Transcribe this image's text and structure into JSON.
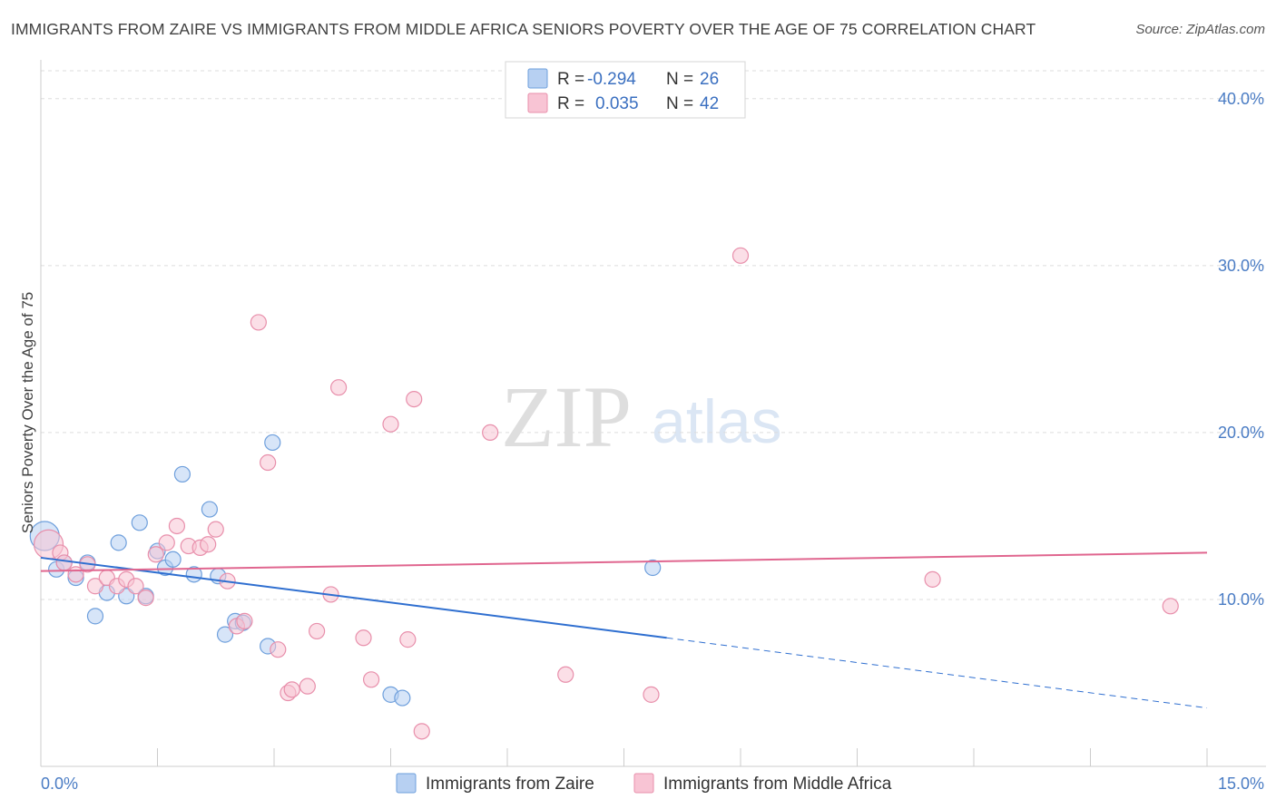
{
  "header": {
    "title": "IMMIGRANTS FROM ZAIRE VS IMMIGRANTS FROM MIDDLE AFRICA SENIORS POVERTY OVER THE AGE OF 75 CORRELATION CHART",
    "source": "Source: ZipAtlas.com"
  },
  "watermark": {
    "zip": "ZIP",
    "atlas": "atlas"
  },
  "colors": {
    "zaire_fill": "#b7d0f2",
    "zaire_stroke": "#6e9fdc",
    "zaire_line": "#2f6fd0",
    "africa_fill": "#f8c4d4",
    "africa_stroke": "#e88fab",
    "africa_line": "#e0668f",
    "axis_label": "#4a7cc4",
    "grid": "#dddddd"
  },
  "chart_data": {
    "type": "scatter",
    "title": "IMMIGRANTS FROM ZAIRE VS IMMIGRANTS FROM MIDDLE AFRICA SENIORS POVERTY OVER THE AGE OF 75 CORRELATION CHART",
    "xlabel": "",
    "ylabel": "Seniors Poverty Over the Age of 75",
    "xlim": [
      0,
      15
    ],
    "ylim": [
      0,
      42
    ],
    "x_tick_labels": [
      {
        "value": 0,
        "label": "0.0%"
      },
      {
        "value": 15,
        "label": "15.0%"
      }
    ],
    "x_minor_ticks": [
      1.5,
      3.0,
      4.5,
      6.0,
      7.5,
      9.0,
      10.5,
      12.0,
      13.5,
      15.0
    ],
    "y_tick_labels": [
      {
        "value": 10,
        "label": "10.0%"
      },
      {
        "value": 20,
        "label": "20.0%"
      },
      {
        "value": 30,
        "label": "30.0%"
      },
      {
        "value": 40,
        "label": "40.0%"
      }
    ],
    "grid": true,
    "legend": {
      "position": "top-center",
      "entries": [
        {
          "r_label": "R = ",
          "r_value": "-0.294",
          "n_label": "N = ",
          "n_value": "26"
        },
        {
          "r_label": "R = ",
          "r_value": "0.035",
          "n_label": "N = ",
          "n_value": "42"
        }
      ]
    },
    "bottom_legend": [
      "Immigrants from Zaire",
      "Immigrants from Middle Africa"
    ],
    "series": [
      {
        "name": "Immigrants from Zaire",
        "color": "#b7d0f2",
        "points": [
          {
            "x": 0.05,
            "y": 13.8,
            "big": true
          },
          {
            "x": 0.2,
            "y": 11.8
          },
          {
            "x": 0.3,
            "y": 12.2
          },
          {
            "x": 0.45,
            "y": 11.3
          },
          {
            "x": 0.6,
            "y": 12.2
          },
          {
            "x": 0.7,
            "y": 9.0
          },
          {
            "x": 0.85,
            "y": 10.4
          },
          {
            "x": 1.0,
            "y": 13.4
          },
          {
            "x": 1.1,
            "y": 10.2
          },
          {
            "x": 1.27,
            "y": 14.6
          },
          {
            "x": 1.35,
            "y": 10.2
          },
          {
            "x": 1.5,
            "y": 12.9
          },
          {
            "x": 1.6,
            "y": 11.9
          },
          {
            "x": 1.7,
            "y": 12.4
          },
          {
            "x": 1.82,
            "y": 17.5
          },
          {
            "x": 1.97,
            "y": 11.5
          },
          {
            "x": 2.17,
            "y": 15.4
          },
          {
            "x": 2.28,
            "y": 11.4
          },
          {
            "x": 2.37,
            "y": 7.9
          },
          {
            "x": 2.5,
            "y": 8.7
          },
          {
            "x": 2.6,
            "y": 8.6
          },
          {
            "x": 2.92,
            "y": 7.2
          },
          {
            "x": 2.98,
            "y": 19.4
          },
          {
            "x": 4.5,
            "y": 4.3
          },
          {
            "x": 4.65,
            "y": 4.1
          },
          {
            "x": 7.87,
            "y": 11.9
          }
        ],
        "trend": {
          "x0": 0,
          "y0": 12.5,
          "x1": 8.05,
          "y1": 7.7,
          "dash_x1": 15,
          "dash_y1": 3.5
        }
      },
      {
        "name": "Immigrants from Middle Africa",
        "color": "#f8c4d4",
        "points": [
          {
            "x": 0.1,
            "y": 13.3,
            "big": true
          },
          {
            "x": 0.25,
            "y": 12.8
          },
          {
            "x": 0.3,
            "y": 12.2
          },
          {
            "x": 0.45,
            "y": 11.5
          },
          {
            "x": 0.6,
            "y": 12.1
          },
          {
            "x": 0.7,
            "y": 10.8
          },
          {
            "x": 0.85,
            "y": 11.3
          },
          {
            "x": 0.98,
            "y": 10.8
          },
          {
            "x": 1.1,
            "y": 11.2
          },
          {
            "x": 1.22,
            "y": 10.8
          },
          {
            "x": 1.35,
            "y": 10.1
          },
          {
            "x": 1.48,
            "y": 12.7
          },
          {
            "x": 1.62,
            "y": 13.4
          },
          {
            "x": 1.75,
            "y": 14.4
          },
          {
            "x": 1.9,
            "y": 13.2
          },
          {
            "x": 2.05,
            "y": 13.1
          },
          {
            "x": 2.15,
            "y": 13.3
          },
          {
            "x": 2.25,
            "y": 14.2
          },
          {
            "x": 2.4,
            "y": 11.1
          },
          {
            "x": 2.52,
            "y": 8.4
          },
          {
            "x": 2.62,
            "y": 8.7
          },
          {
            "x": 2.8,
            "y": 26.6
          },
          {
            "x": 2.92,
            "y": 18.2
          },
          {
            "x": 3.05,
            "y": 7.0
          },
          {
            "x": 3.18,
            "y": 4.4
          },
          {
            "x": 3.23,
            "y": 4.6
          },
          {
            "x": 3.43,
            "y": 4.8
          },
          {
            "x": 3.55,
            "y": 8.1
          },
          {
            "x": 3.73,
            "y": 10.3
          },
          {
            "x": 3.83,
            "y": 22.7
          },
          {
            "x": 4.15,
            "y": 7.7
          },
          {
            "x": 4.25,
            "y": 5.2
          },
          {
            "x": 4.5,
            "y": 20.5
          },
          {
            "x": 4.72,
            "y": 7.6
          },
          {
            "x": 4.8,
            "y": 22.0
          },
          {
            "x": 4.9,
            "y": 2.1
          },
          {
            "x": 5.78,
            "y": 20.0
          },
          {
            "x": 6.75,
            "y": 5.5
          },
          {
            "x": 7.85,
            "y": 4.3
          },
          {
            "x": 9.0,
            "y": 30.6
          },
          {
            "x": 11.47,
            "y": 11.2
          },
          {
            "x": 14.53,
            "y": 9.6
          }
        ],
        "trend": {
          "x0": 0,
          "y0": 11.7,
          "x1": 15,
          "y1": 12.8
        }
      }
    ]
  }
}
